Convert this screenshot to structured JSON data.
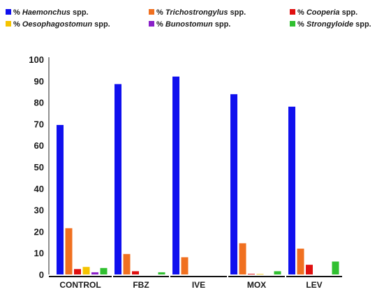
{
  "chart_data": {
    "type": "bar",
    "title": "",
    "xlabel": "",
    "ylabel": "",
    "ylim": [
      0,
      100
    ],
    "yticks": [
      0,
      10,
      20,
      30,
      40,
      50,
      60,
      70,
      80,
      90,
      100
    ],
    "grid": false,
    "legend_position": "top",
    "categories": [
      "CONTROL",
      "FBZ",
      "IVE",
      "MOX",
      "LEV"
    ],
    "series": [
      {
        "name": "% Haemonchus spp.",
        "prefix": "%",
        "genus": "Haemonchus",
        "suffix": "spp.",
        "color": "#1010ee",
        "values": [
          69.5,
          88.5,
          92,
          83.8,
          78
        ]
      },
      {
        "name": "% Trichostrongylus spp.",
        "prefix": "%",
        "genus": "Trichostrongylus",
        "suffix": "spp.",
        "color": "#f07020",
        "values": [
          21.5,
          9.5,
          8,
          14.5,
          12
        ]
      },
      {
        "name": "% Cooperia spp.",
        "prefix": "%",
        "genus": "Cooperia",
        "suffix": "spp.",
        "color": "#e01010",
        "values": [
          2.5,
          1.5,
          0,
          0.3,
          4.5
        ]
      },
      {
        "name": "% Oesophagostomun spp.",
        "prefix": "%",
        "genus": "Oesophagostomun",
        "suffix": "spp.",
        "color": "#f5c400",
        "values": [
          3.5,
          0,
          0,
          0.2,
          0
        ]
      },
      {
        "name": "% Bunostomun spp.",
        "prefix": "%",
        "genus": "Bunostomun",
        "suffix": "spp.",
        "color": "#8a20c8",
        "values": [
          1,
          0,
          0,
          0,
          0
        ]
      },
      {
        "name": "% Strongyloide spp.",
        "prefix": "%",
        "genus": "Strongyloide",
        "suffix": "spp.",
        "color": "#30c030",
        "values": [
          3,
          1,
          0,
          1.5,
          6
        ]
      }
    ]
  }
}
